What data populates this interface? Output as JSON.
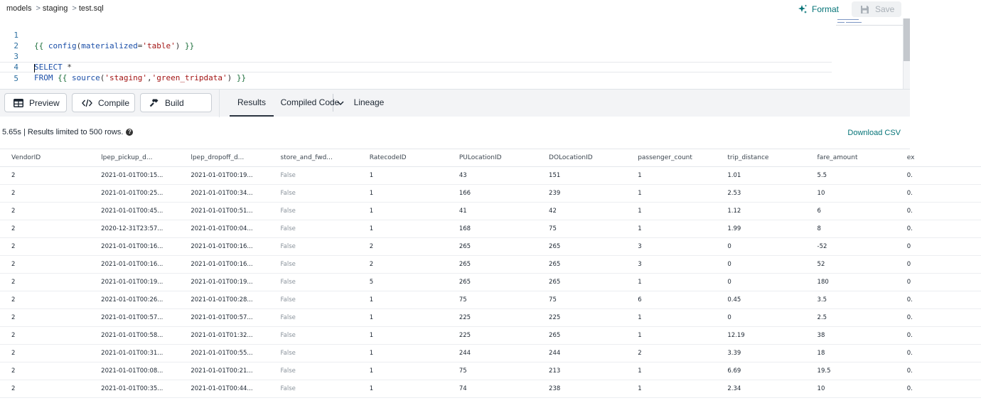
{
  "breadcrumb": [
    "models",
    "staging",
    "test.sql"
  ],
  "actions": {
    "format": "Format",
    "save": "Save"
  },
  "editor": {
    "line_numbers": [
      "1",
      "2",
      "3",
      "4",
      "5"
    ]
  },
  "toolbar": {
    "preview": "Preview",
    "compile": "Compile",
    "build": "Build",
    "tabs": [
      "Results",
      "Compiled Code",
      "Lineage"
    ]
  },
  "results": {
    "status": "5.65s | Results limited to 500 rows.",
    "download": "Download CSV",
    "columns": [
      "VendorID",
      "lpep_pickup_d...",
      "lpep_dropoff_d...",
      "store_and_fwd...",
      "RatecodeID",
      "PULocationID",
      "DOLocationID",
      "passenger_count",
      "trip_distance",
      "fare_amount",
      "ex"
    ],
    "rows": [
      [
        "2",
        "2021-01-01T00:15...",
        "2021-01-01T00:19...",
        "False",
        "1",
        "43",
        "151",
        "1",
        "1.01",
        "5.5",
        "0."
      ],
      [
        "2",
        "2021-01-01T00:25...",
        "2021-01-01T00:34...",
        "False",
        "1",
        "166",
        "239",
        "1",
        "2.53",
        "10",
        "0."
      ],
      [
        "2",
        "2021-01-01T00:45...",
        "2021-01-01T00:51...",
        "False",
        "1",
        "41",
        "42",
        "1",
        "1.12",
        "6",
        "0."
      ],
      [
        "2",
        "2020-12-31T23:57...",
        "2021-01-01T00:04...",
        "False",
        "1",
        "168",
        "75",
        "1",
        "1.99",
        "8",
        "0."
      ],
      [
        "2",
        "2021-01-01T00:16...",
        "2021-01-01T00:16...",
        "False",
        "2",
        "265",
        "265",
        "3",
        "0",
        "-52",
        "0"
      ],
      [
        "2",
        "2021-01-01T00:16...",
        "2021-01-01T00:16...",
        "False",
        "2",
        "265",
        "265",
        "3",
        "0",
        "52",
        "0"
      ],
      [
        "2",
        "2021-01-01T00:19...",
        "2021-01-01T00:19...",
        "False",
        "5",
        "265",
        "265",
        "1",
        "0",
        "180",
        "0"
      ],
      [
        "2",
        "2021-01-01T00:26...",
        "2021-01-01T00:28...",
        "False",
        "1",
        "75",
        "75",
        "6",
        "0.45",
        "3.5",
        "0."
      ],
      [
        "2",
        "2021-01-01T00:57...",
        "2021-01-01T00:57...",
        "False",
        "1",
        "225",
        "225",
        "1",
        "0",
        "2.5",
        "0."
      ],
      [
        "2",
        "2021-01-01T00:58...",
        "2021-01-01T01:32...",
        "False",
        "1",
        "225",
        "265",
        "1",
        "12.19",
        "38",
        "0."
      ],
      [
        "2",
        "2021-01-01T00:31...",
        "2021-01-01T00:55...",
        "False",
        "1",
        "244",
        "244",
        "2",
        "3.39",
        "18",
        "0."
      ],
      [
        "2",
        "2021-01-01T00:08...",
        "2021-01-01T00:21...",
        "False",
        "1",
        "75",
        "213",
        "1",
        "6.69",
        "19.5",
        "0."
      ],
      [
        "2",
        "2021-01-01T00:35...",
        "2021-01-01T00:44...",
        "False",
        "1",
        "74",
        "238",
        "1",
        "2.34",
        "10",
        "0."
      ]
    ]
  },
  "colors": {
    "accent": "#047377",
    "toolbar_bg": "#f3f4f6"
  },
  "icons": {
    "format": "sparkle-icon",
    "save": "floppy-disk-icon",
    "preview": "table-icon",
    "compile": "code-icon",
    "build": "hammer-icon",
    "build_menu": "chevron-down-icon",
    "help": "question-icon"
  }
}
